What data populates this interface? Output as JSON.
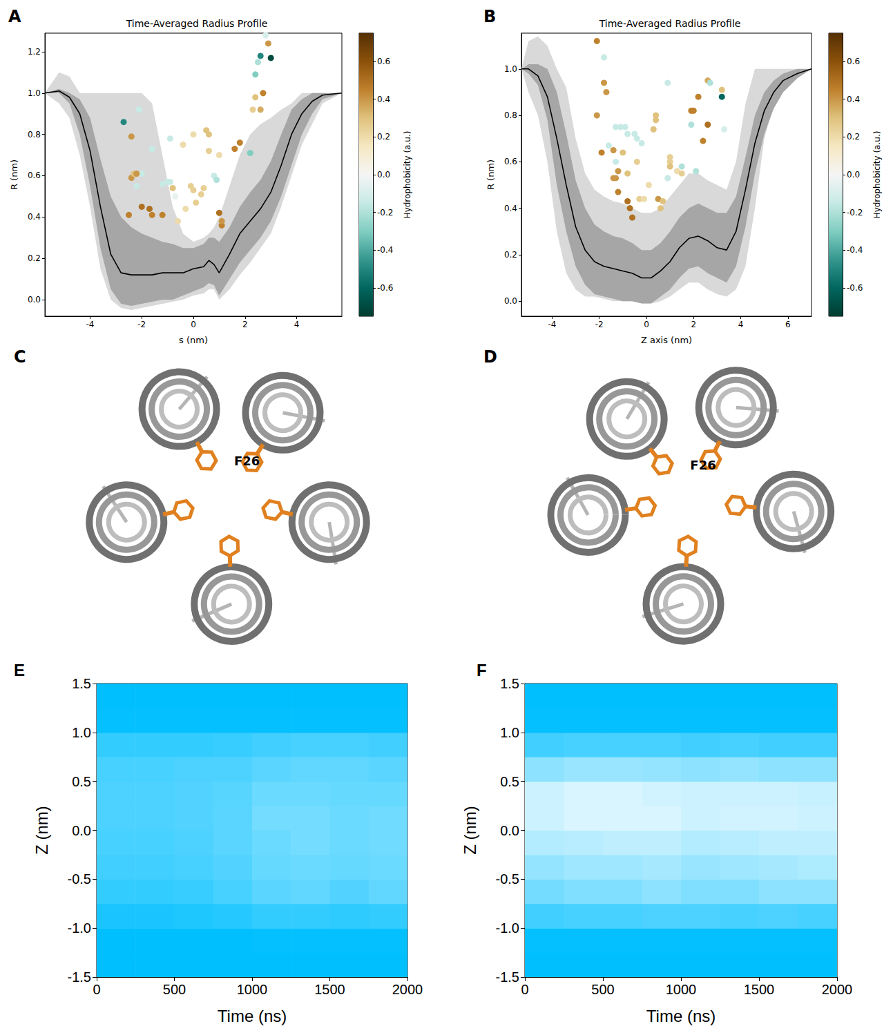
{
  "chart_data": [
    {
      "panel": "A",
      "type": "line",
      "title": "Time-Averaged Radius Profile",
      "x_label": "s (nm)",
      "y_label": "R (nm)",
      "xlim": [
        -5.75,
        5.75
      ],
      "xticks": [
        -4,
        -2,
        0,
        2,
        4
      ],
      "ylim": [
        -0.08,
        1.29
      ],
      "yticks": [
        {
          "value": 0,
          "label": "0.0"
        },
        0.2,
        0.4,
        0.6,
        0.8,
        {
          "value": 1,
          "label": "1.0"
        },
        1.2
      ],
      "x": [
        -5.75,
        -5.2,
        -4.8,
        -4.4,
        -4.0,
        -3.6,
        -3.2,
        -2.8,
        -2.4,
        -2.0,
        -1.6,
        -1.2,
        -0.8,
        -0.4,
        0.0,
        0.4,
        0.6,
        0.8,
        1.0,
        1.4,
        1.8,
        2.2,
        2.6,
        3.0,
        3.4,
        3.8,
        4.2,
        4.6,
        5.0,
        5.75
      ],
      "mean": [
        1.0,
        1.01,
        0.98,
        0.9,
        0.72,
        0.45,
        0.22,
        0.13,
        0.12,
        0.12,
        0.12,
        0.13,
        0.13,
        0.13,
        0.15,
        0.16,
        0.19,
        0.17,
        0.13,
        0.22,
        0.32,
        0.38,
        0.44,
        0.52,
        0.65,
        0.8,
        0.9,
        0.96,
        0.99,
        1.0
      ],
      "color": "#000000",
      "band_range": {
        "color": "#d9d9d9",
        "lower": [
          1.0,
          0.95,
          0.88,
          0.7,
          0.45,
          0.15,
          0.0,
          -0.04,
          -0.05,
          -0.04,
          -0.03,
          -0.02,
          -0.01,
          0,
          0.02,
          0.03,
          0.05,
          0.05,
          0,
          0.05,
          0.12,
          0.18,
          0.25,
          0.32,
          0.45,
          0.6,
          0.75,
          0.85,
          0.95,
          1.0
        ],
        "upper": [
          1.0,
          1.1,
          1.08,
          1.0,
          1.0,
          1.0,
          1.0,
          1.0,
          1.0,
          1.0,
          0.95,
          0.7,
          0.45,
          0.32,
          0.28,
          0.3,
          0.32,
          0.35,
          0.4,
          0.55,
          0.7,
          0.8,
          0.85,
          0.88,
          0.92,
          0.95,
          1.0,
          1.0,
          1.0,
          1.0
        ]
      },
      "band_sd": {
        "color": "#a6a6a6",
        "lower": [
          1.0,
          1.0,
          0.95,
          0.8,
          0.55,
          0.25,
          0.05,
          -0.02,
          -0.03,
          -0.02,
          -0.01,
          0,
          0,
          0.02,
          0.04,
          0.06,
          0.08,
          0.07,
          0.02,
          0.1,
          0.18,
          0.24,
          0.3,
          0.38,
          0.5,
          0.65,
          0.8,
          0.9,
          0.97,
          1.0
        ],
        "upper": [
          1.0,
          1.02,
          1.0,
          0.97,
          0.88,
          0.68,
          0.5,
          0.4,
          0.35,
          0.32,
          0.3,
          0.28,
          0.27,
          0.25,
          0.25,
          0.27,
          0.3,
          0.3,
          0.28,
          0.35,
          0.45,
          0.52,
          0.58,
          0.67,
          0.8,
          0.92,
          0.97,
          1.0,
          1.0,
          1.0
        ]
      },
      "points": {
        "x": [
          -2.7,
          -2.4,
          -2.1,
          -2.4,
          -2.3,
          -2.2,
          -2.0,
          -2.2,
          -2.0,
          -2.5,
          -1.6,
          -1.7,
          -1.6,
          -1.2,
          -1.2,
          -1.0,
          -0.9,
          -0.8,
          -0.9,
          -0.7,
          -0.6,
          -0.4,
          -0.3,
          -0.1,
          0.0,
          0.0,
          0.1,
          0.3,
          0.4,
          0.5,
          0.6,
          0.6,
          0.8,
          0.9,
          1.0,
          1.0,
          1.1,
          1.1,
          1.6,
          1.8,
          2.2,
          2.3,
          2.4,
          2.6,
          2.7,
          2.4,
          2.6,
          2.8,
          2.9,
          3.0,
          2.5
        ],
        "y": [
          0.86,
          0.79,
          0.92,
          0.59,
          0.61,
          0.55,
          0.61,
          0.61,
          0.45,
          0.41,
          0.73,
          0.44,
          0.41,
          0.41,
          0.56,
          0.57,
          0.57,
          0.54,
          0.78,
          0.5,
          0.38,
          0.75,
          0.44,
          0.55,
          0.8,
          0.53,
          0.47,
          0.51,
          0.54,
          0.82,
          0.8,
          0.72,
          0.6,
          0.58,
          0.7,
          0.42,
          0.36,
          0.38,
          0.73,
          0.76,
          0.71,
          0.92,
          0.98,
          0.92,
          1.0,
          1.09,
          1.18,
          1.28,
          1.24,
          1.17,
          1.15
        ],
        "hydrophobicity": [
          -0.5,
          0.4,
          -0.15,
          0.4,
          0.3,
          -0.15,
          -0.15,
          0.4,
          0.5,
          0.45,
          -0.15,
          0.5,
          0.45,
          0.45,
          -0.15,
          -0.15,
          -0.15,
          0.3,
          -0.15,
          -0.05,
          0.2,
          0.2,
          0.2,
          0.25,
          0.2,
          0.25,
          0.25,
          0.25,
          0.25,
          0.3,
          0.3,
          0.25,
          -0.15,
          -0.2,
          0.2,
          0.5,
          0.45,
          0.4,
          0.45,
          0.45,
          -0.3,
          0.25,
          0.3,
          0.35,
          0.45,
          -0.3,
          -0.5,
          -0.1,
          0.4,
          -0.7,
          -0.2
        ]
      },
      "colorbar": {
        "label": "Hydrophobicity (a.u.)",
        "range": [
          -0.75,
          0.75
        ],
        "ticks": [
          -0.6,
          -0.4,
          -0.2,
          {
            "value": 0,
            "label": "0.0"
          },
          0.2,
          0.4,
          0.6
        ]
      }
    },
    {
      "panel": "B",
      "type": "line",
      "title": "Time-Averaged Radius Profile",
      "x_label": "Z axis (nm)",
      "y_label": "R (nm)",
      "xlim": [
        -5.3,
        7.0
      ],
      "xticks": [
        -4,
        -2,
        0,
        2,
        4,
        6
      ],
      "ylim": [
        -0.065,
        1.154
      ],
      "yticks": [
        {
          "value": 0,
          "label": "0.0"
        },
        0.2,
        0.4,
        0.6,
        0.8,
        {
          "value": 1,
          "label": "1.0"
        }
      ],
      "x": [
        -5.3,
        -5.0,
        -4.6,
        -4.2,
        -3.8,
        -3.4,
        -3.0,
        -2.6,
        -2.2,
        -1.8,
        -1.4,
        -1.0,
        -0.6,
        -0.2,
        0.2,
        0.6,
        1.0,
        1.4,
        1.8,
        2.2,
        2.6,
        3.0,
        3.4,
        3.8,
        4.2,
        4.6,
        5.0,
        5.4,
        5.8,
        6.4,
        7.0
      ],
      "mean": [
        1.0,
        1.0,
        0.97,
        0.88,
        0.7,
        0.5,
        0.32,
        0.22,
        0.17,
        0.15,
        0.14,
        0.13,
        0.12,
        0.1,
        0.1,
        0.13,
        0.17,
        0.23,
        0.27,
        0.28,
        0.26,
        0.23,
        0.22,
        0.3,
        0.48,
        0.68,
        0.82,
        0.9,
        0.95,
        0.98,
        1.0
      ],
      "color": "#000000",
      "band_range": {
        "color": "#d9d9d9",
        "lower": [
          1.0,
          0.9,
          0.8,
          0.6,
          0.3,
          0.12,
          0.05,
          0.02,
          0.02,
          0.01,
          0,
          0,
          0,
          -0.01,
          -0.01,
          0,
          0.02,
          0.05,
          0.08,
          0.08,
          0.05,
          0.03,
          0.02,
          0.05,
          0.15,
          0.4,
          0.7,
          0.85,
          0.95,
          1.0,
          1.0
        ],
        "upper": [
          1.0,
          1.12,
          1.14,
          1.1,
          1.0,
          0.92,
          0.7,
          0.55,
          0.48,
          0.45,
          0.43,
          0.42,
          0.4,
          0.38,
          0.38,
          0.4,
          0.45,
          0.5,
          0.55,
          0.55,
          0.52,
          0.5,
          0.48,
          0.6,
          0.85,
          1.0,
          1.0,
          1.0,
          1.0,
          1.0,
          1.0
        ]
      },
      "band_sd": {
        "color": "#a6a6a6",
        "lower": [
          1.0,
          0.98,
          0.93,
          0.78,
          0.5,
          0.3,
          0.15,
          0.07,
          0.03,
          0.02,
          0.01,
          0,
          0,
          -0.01,
          -0.01,
          0.02,
          0.05,
          0.1,
          0.14,
          0.15,
          0.12,
          0.1,
          0.08,
          0.15,
          0.32,
          0.55,
          0.72,
          0.83,
          0.9,
          0.96,
          1.0
        ],
        "upper": [
          1.0,
          1.02,
          1.02,
          1.0,
          0.9,
          0.72,
          0.52,
          0.4,
          0.33,
          0.3,
          0.28,
          0.27,
          0.25,
          0.22,
          0.22,
          0.25,
          0.3,
          0.36,
          0.4,
          0.42,
          0.4,
          0.38,
          0.38,
          0.45,
          0.62,
          0.8,
          0.9,
          0.95,
          0.98,
          1.0,
          1.0
        ]
      },
      "points": {
        "x": [
          -2.1,
          -1.8,
          -1.8,
          -1.7,
          -2.1,
          -1.6,
          -1.3,
          -1.1,
          -0.9,
          -0.8,
          -0.5,
          -0.4,
          -0.2,
          -1.4,
          -1.9,
          -1.3,
          -1.2,
          -1.0,
          -1.4,
          -1.3,
          -0.8,
          -1.2,
          -0.8,
          -0.7,
          -0.6,
          -0.3,
          -0.1,
          0.1,
          -0.4,
          0.4,
          0.4,
          0.3,
          0.9,
          0.5,
          0.6,
          0.7,
          1.0,
          1.0,
          1.0,
          0.9,
          1.3,
          1.5,
          1.5,
          1.9,
          1.9,
          2.0,
          2.1,
          2.2,
          2.4,
          2.6,
          2.6,
          2.7,
          3.2,
          3.2,
          3.3
        ],
        "y": [
          1.12,
          1.05,
          0.94,
          0.9,
          0.8,
          0.67,
          0.75,
          0.75,
          0.75,
          0.72,
          0.72,
          0.7,
          0.68,
          0.65,
          0.64,
          0.6,
          0.56,
          0.64,
          0.53,
          0.53,
          0.55,
          0.47,
          0.43,
          0.4,
          0.36,
          0.44,
          0.44,
          0.5,
          0.6,
          0.8,
          0.78,
          0.74,
          0.94,
          0.44,
          0.4,
          0.43,
          0.62,
          0.6,
          0.58,
          0.53,
          0.56,
          0.58,
          0.55,
          0.76,
          0.82,
          0.82,
          0.56,
          0.88,
          0.69,
          0.76,
          0.95,
          0.94,
          0.91,
          0.88,
          0.74
        ],
        "hydrophobicity": [
          0.45,
          -0.15,
          0.4,
          0.4,
          0.4,
          -0.15,
          -0.15,
          -0.15,
          -0.15,
          -0.15,
          -0.15,
          -0.15,
          -0.15,
          0.4,
          0.45,
          -0.15,
          0.4,
          0.3,
          0.4,
          0.4,
          0.3,
          0.45,
          0.5,
          0.5,
          0.5,
          0.25,
          0.2,
          0.2,
          0.25,
          0.3,
          0.3,
          0.3,
          -0.15,
          0.4,
          0.3,
          0.3,
          0.25,
          0.25,
          0.3,
          -0.15,
          0.2,
          -0.2,
          0.25,
          -0.2,
          0.45,
          0.45,
          -0.2,
          0.45,
          0.45,
          0.5,
          0.35,
          -0.2,
          0.3,
          -0.6,
          -0.1
        ]
      },
      "colorbar": {
        "label": "Hydrophobicity (a.u.)",
        "range": [
          -0.75,
          0.75
        ],
        "ticks": [
          -0.6,
          -0.4,
          -0.2,
          {
            "value": 0,
            "label": "0.0"
          },
          0.2,
          0.4,
          0.6
        ]
      }
    },
    {
      "panel": "E",
      "type": "heatmap",
      "x_label": "Time (ns)",
      "y_label": "Z (nm)",
      "color": "#00bfff",
      "xlim": [
        0,
        2000
      ],
      "xticks": [
        0,
        500,
        1000,
        1500,
        2000
      ],
      "ylim": [
        -1.5,
        1.5
      ],
      "yticks": [
        -1.5,
        {
          "value": -1,
          "label": "-1.0"
        },
        -0.5,
        {
          "value": 0,
          "label": "0.0"
        },
        0.5,
        {
          "value": 1,
          "label": "1.0"
        },
        1.5
      ],
      "time_bins": [
        0,
        250,
        500,
        750,
        1000,
        1250,
        1500,
        1750,
        2000
      ],
      "z_bins": [
        -1.5,
        -1.25,
        -1.0,
        -0.75,
        -0.5,
        -0.25,
        0,
        0.25,
        0.5,
        0.75,
        1.0,
        1.25,
        1.5
      ],
      "density": [
        [
          1,
          1,
          1,
          1,
          1,
          1,
          1,
          1
        ],
        [
          1,
          1,
          1,
          1,
          0.98,
          0.98,
          0.98,
          0.98
        ],
        [
          0.9,
          0.9,
          0.88,
          0.85,
          0.8,
          0.8,
          0.82,
          0.8
        ],
        [
          0.8,
          0.8,
          0.78,
          0.72,
          0.65,
          0.62,
          0.68,
          0.62
        ],
        [
          0.75,
          0.75,
          0.72,
          0.68,
          0.6,
          0.58,
          0.6,
          0.58
        ],
        [
          0.72,
          0.72,
          0.7,
          0.65,
          0.58,
          0.55,
          0.58,
          0.56
        ],
        [
          0.7,
          0.7,
          0.68,
          0.65,
          0.55,
          0.55,
          0.58,
          0.56
        ],
        [
          0.7,
          0.7,
          0.68,
          0.66,
          0.58,
          0.58,
          0.6,
          0.6
        ],
        [
          0.72,
          0.72,
          0.7,
          0.7,
          0.65,
          0.62,
          0.62,
          0.65
        ],
        [
          0.8,
          0.8,
          0.8,
          0.78,
          0.75,
          0.72,
          0.72,
          0.75
        ],
        [
          0.98,
          0.98,
          0.98,
          0.98,
          0.98,
          0.98,
          0.98,
          0.98
        ],
        [
          1,
          1,
          1,
          1,
          1,
          1,
          1,
          1
        ]
      ]
    },
    {
      "panel": "F",
      "type": "heatmap",
      "x_label": "Time (ns)",
      "y_label": "Z (nm)",
      "color": "#00bfff",
      "xlim": [
        0,
        2000
      ],
      "xticks": [
        0,
        500,
        1000,
        1500,
        2000
      ],
      "ylim": [
        -1.5,
        1.5
      ],
      "yticks": [
        -1.5,
        {
          "value": -1,
          "label": "-1.0"
        },
        -0.5,
        {
          "value": 0,
          "label": "0.0"
        },
        0.5,
        {
          "value": 1,
          "label": "1.0"
        },
        1.5
      ],
      "time_bins": [
        0,
        250,
        500,
        750,
        1000,
        1250,
        1500,
        1750,
        2000
      ],
      "z_bins": [
        -1.5,
        -1.25,
        -1.0,
        -0.75,
        -0.5,
        -0.25,
        0,
        0.25,
        0.5,
        0.75,
        1.0,
        1.25,
        1.5
      ],
      "density": [
        [
          1,
          1,
          1,
          1,
          1,
          1,
          1,
          1
        ],
        [
          0.98,
          0.98,
          0.98,
          0.98,
          0.98,
          0.98,
          0.98,
          0.98
        ],
        [
          0.75,
          0.72,
          0.72,
          0.7,
          0.7,
          0.72,
          0.7,
          0.72
        ],
        [
          0.55,
          0.5,
          0.5,
          0.45,
          0.5,
          0.5,
          0.45,
          0.45
        ],
        [
          0.42,
          0.38,
          0.38,
          0.35,
          0.4,
          0.38,
          0.35,
          0.32
        ],
        [
          0.3,
          0.28,
          0.25,
          0.25,
          0.3,
          0.28,
          0.25,
          0.25
        ],
        [
          0.2,
          0.15,
          0.15,
          0.15,
          0.2,
          0.18,
          0.18,
          0.2
        ],
        [
          0.2,
          0.15,
          0.15,
          0.18,
          0.2,
          0.2,
          0.2,
          0.22
        ],
        [
          0.45,
          0.4,
          0.4,
          0.42,
          0.45,
          0.42,
          0.45,
          0.45
        ],
        [
          0.75,
          0.72,
          0.72,
          0.72,
          0.75,
          0.72,
          0.75,
          0.75
        ],
        [
          0.98,
          0.98,
          0.98,
          0.98,
          0.98,
          0.98,
          0.98,
          0.98
        ],
        [
          1,
          1,
          1,
          1,
          1,
          1,
          1,
          1
        ]
      ]
    }
  ],
  "structures": [
    {
      "panel": "C",
      "residue_label": "F26"
    },
    {
      "panel": "D",
      "residue_label": "F26"
    }
  ]
}
